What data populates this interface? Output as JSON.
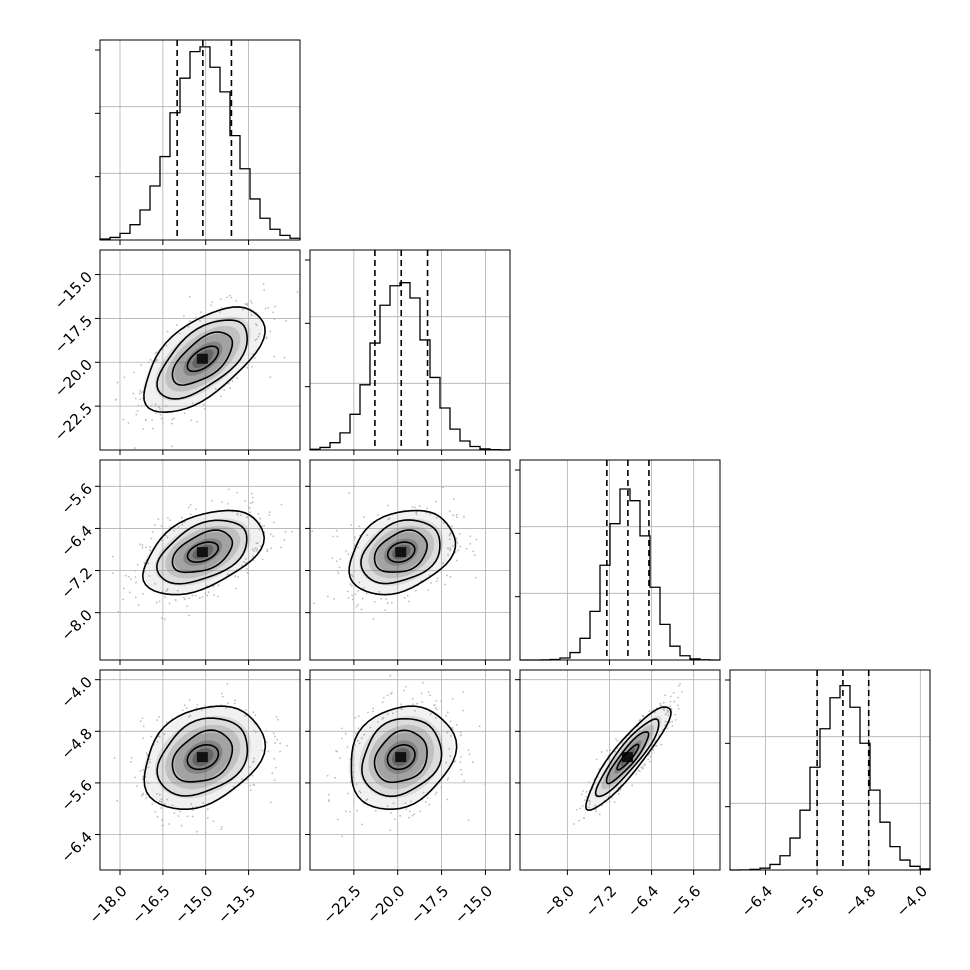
{
  "chart_data": {
    "type": "corner",
    "parameters": 4,
    "grid": true,
    "colors": {
      "line": "#000000",
      "grid": "#b0b0b0",
      "points": "#bdbdbd",
      "density": "#4a4a4a"
    },
    "axes": [
      {
        "min": -18.7,
        "max": -11.7,
        "ticks": [
          -18.0,
          -16.5,
          -15.0,
          -13.5
        ],
        "tick_labels": [
          "−18.0",
          "−16.5",
          "−15.0",
          "−13.5"
        ]
      },
      {
        "min": -25.0,
        "max": -13.6,
        "ticks": [
          -22.5,
          -20.0,
          -17.5,
          -15.0
        ],
        "tick_labels": [
          "−22.5",
          "−20.0",
          "−17.5",
          "−15.0"
        ]
      },
      {
        "min": -8.9,
        "max": -5.1,
        "ticks": [
          -8.0,
          -7.2,
          -6.4,
          -5.6
        ],
        "tick_labels": [
          "−8.0",
          "−7.2",
          "−6.4",
          "−5.6"
        ]
      },
      {
        "min": -6.95,
        "max": -3.85,
        "ticks": [
          -6.4,
          -5.6,
          -4.8,
          -4.0
        ],
        "tick_labels": [
          "−6.4",
          "−5.6",
          "−4.8",
          "−4.0"
        ]
      }
    ],
    "marginals": [
      {
        "param": 0,
        "quantiles": [
          -16.0,
          -15.1,
          -14.1
        ],
        "mean": -15.1,
        "sd": 1.05,
        "peak_fraction": 0.95
      },
      {
        "param": 1,
        "quantiles": [
          -21.3,
          -19.8,
          -18.3
        ],
        "mean": -19.8,
        "sd": 1.5,
        "peak_fraction": 0.85
      },
      {
        "param": 2,
        "quantiles": [
          -7.25,
          -6.85,
          -6.45
        ],
        "mean": -6.85,
        "sd": 0.4,
        "peak_fraction": 0.85
      },
      {
        "param": 3,
        "quantiles": [
          -5.6,
          -5.2,
          -4.8
        ],
        "mean": -5.2,
        "sd": 0.4,
        "peak_fraction": 0.9
      }
    ],
    "correlations": [
      {
        "row": 1,
        "col": 0,
        "rho": 0.6
      },
      {
        "row": 2,
        "col": 0,
        "rho": 0.45
      },
      {
        "row": 2,
        "col": 1,
        "rho": 0.3
      },
      {
        "row": 3,
        "col": 0,
        "rho": 0.3
      },
      {
        "row": 3,
        "col": 1,
        "rho": 0.2
      },
      {
        "row": 3,
        "col": 2,
        "rho": 0.9
      }
    ],
    "contour_levels_sigma": [
      0.5,
      1.0,
      1.5,
      2.0
    ]
  }
}
